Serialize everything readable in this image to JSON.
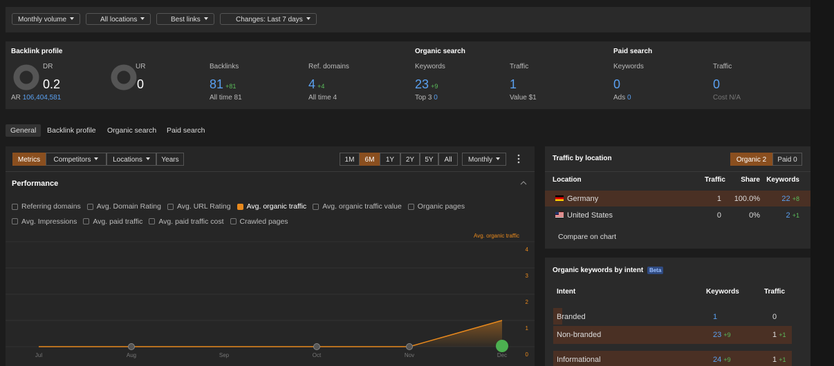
{
  "filters": [
    "Monthly volume",
    "All locations",
    "Best links",
    "Changes: Last 7 days"
  ],
  "metrics": {
    "backlink_profile": {
      "title": "Backlink profile",
      "dr": {
        "label": "DR",
        "value": "0.2"
      },
      "ur": {
        "label": "UR",
        "value": "0"
      },
      "ar_label": "AR",
      "ar_value": "106,404,581",
      "backlinks": {
        "label": "Backlinks",
        "value": "81",
        "change": "+81",
        "sub": "All time 81"
      },
      "ref_domains": {
        "label": "Ref. domains",
        "value": "4",
        "change": "+4",
        "sub": "All time 4"
      }
    },
    "organic": {
      "title": "Organic search",
      "keywords": {
        "label": "Keywords",
        "value": "23",
        "change": "+9",
        "sub_label": "Top 3",
        "sub_value": "0"
      },
      "traffic": {
        "label": "Traffic",
        "value": "1",
        "sub": "Value $1"
      }
    },
    "paid": {
      "title": "Paid search",
      "keywords": {
        "label": "Keywords",
        "value": "0",
        "sub_label": "Ads",
        "sub_value": "0"
      },
      "traffic": {
        "label": "Traffic",
        "value": "0",
        "sub": "Cost N/A"
      }
    }
  },
  "tabs": [
    "General",
    "Backlink profile",
    "Organic search",
    "Paid search"
  ],
  "toolbar": {
    "left": [
      "Metrics",
      "Competitors",
      "Locations",
      "Years"
    ],
    "ranges": [
      "1M",
      "6M",
      "1Y",
      "2Y",
      "5Y",
      "All"
    ],
    "interval": "Monthly"
  },
  "performance": {
    "title": "Performance",
    "checkboxes": [
      [
        {
          "label": "Referring domains",
          "checked": false
        },
        {
          "label": "Avg. Domain Rating",
          "checked": false
        },
        {
          "label": "Avg. URL Rating",
          "checked": false
        },
        {
          "label": "Avg. organic traffic",
          "checked": true
        },
        {
          "label": "Avg. organic traffic value",
          "checked": false
        },
        {
          "label": "Organic pages",
          "checked": false
        }
      ],
      [
        {
          "label": "Avg. Impressions",
          "checked": false
        },
        {
          "label": "Avg. paid traffic",
          "checked": false
        },
        {
          "label": "Avg. paid traffic cost",
          "checked": false
        },
        {
          "label": "Crawled pages",
          "checked": false
        }
      ]
    ]
  },
  "chart_data": {
    "type": "line",
    "categories": [
      "Jul",
      "Aug",
      "Sep",
      "Oct",
      "Nov",
      "Dec"
    ],
    "series": [
      {
        "name": "Avg. organic traffic",
        "color": "#e8891d",
        "values": [
          0,
          0,
          0,
          0,
          0,
          1
        ]
      }
    ],
    "ylim": [
      0,
      4
    ],
    "yticks": [
      0,
      1,
      2,
      3,
      4
    ],
    "grid": true
  },
  "traffic_by_location": {
    "title": "Traffic by location",
    "toggle": [
      "Organic 2",
      "Paid 0"
    ],
    "header": [
      "Location",
      "Traffic",
      "Share",
      "Keywords"
    ],
    "rows": [
      {
        "location": "Germany",
        "traffic": "1",
        "share": "100.0%",
        "keywords": "22",
        "change": "+8"
      },
      {
        "location": "United States",
        "traffic": "0",
        "share": "0%",
        "keywords": "2",
        "change": "+1"
      }
    ],
    "compare": "Compare on chart"
  },
  "intent": {
    "title": "Organic keywords by intent",
    "badge": "Beta",
    "header": [
      "Intent",
      "Keywords",
      "Traffic"
    ],
    "rows": [
      {
        "intent": "Branded",
        "keywords": "1",
        "kw_change": null,
        "traffic": "0",
        "tr_change": null
      },
      {
        "intent": "Non-branded",
        "keywords": "23",
        "kw_change": "+9",
        "traffic": "1",
        "tr_change": "+1"
      },
      {
        "intent": "Informational",
        "keywords": "24",
        "kw_change": "+9",
        "traffic": "1",
        "tr_change": "+1"
      }
    ]
  }
}
